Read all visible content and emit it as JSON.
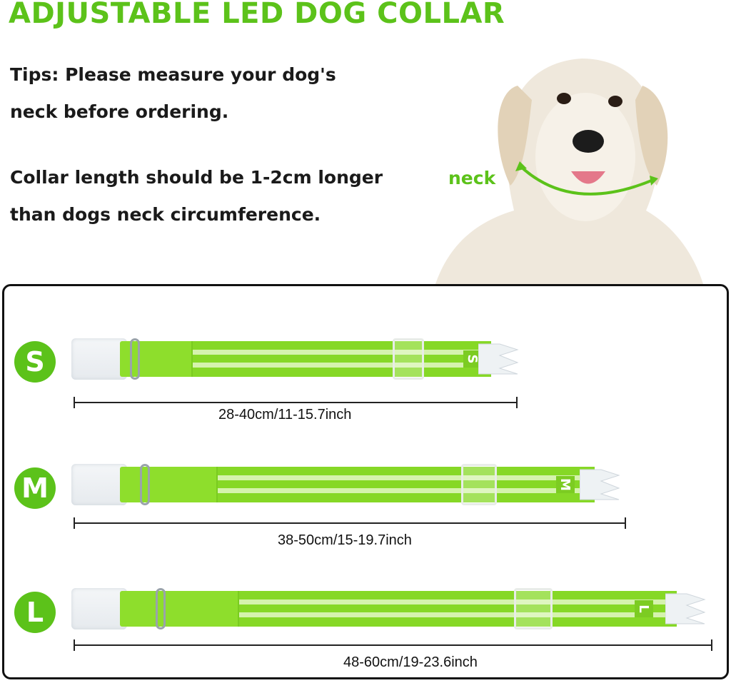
{
  "title": "ADJUSTABLE LED DOG COLLAR",
  "tips": [
    "Tips: Please measure your dog's",
    "neck before ordering.",
    "Collar length should be 1-2cm longer",
    "than dogs neck circumference."
  ],
  "neck_label": "neck",
  "accent_color": "#5cc21a",
  "collar_color": "#8ede2c",
  "sizes": [
    {
      "letter": "S",
      "range": "28-40cm/11-15.7inch"
    },
    {
      "letter": "M",
      "range": "38-50cm/15-19.7inch"
    },
    {
      "letter": "L",
      "range": "48-60cm/19-23.6inch"
    }
  ]
}
